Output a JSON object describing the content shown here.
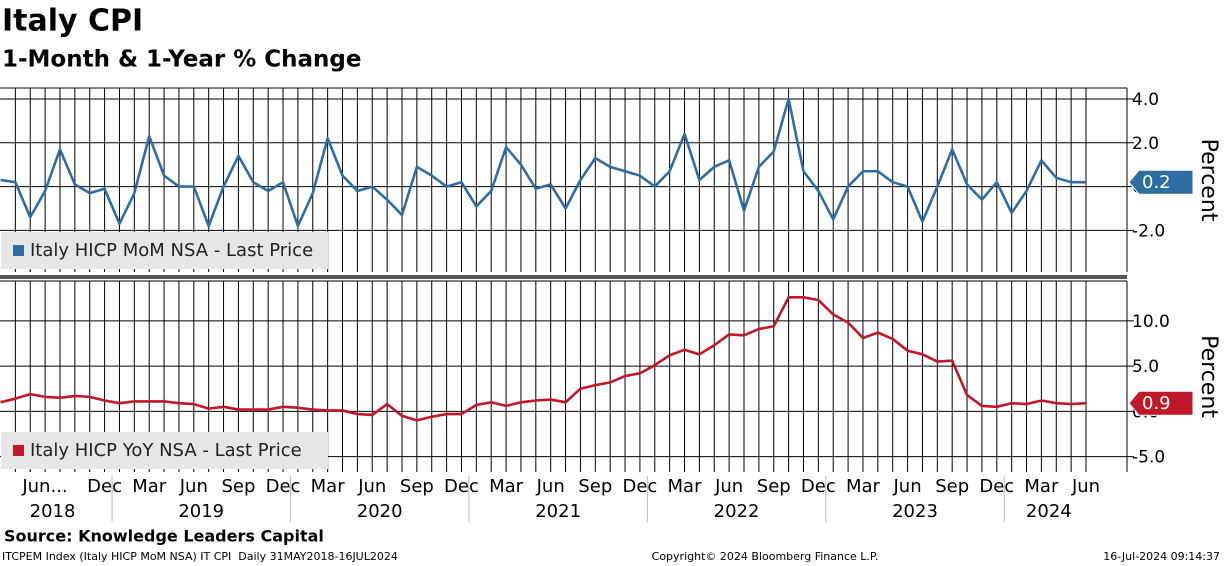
{
  "title": "Italy CPI",
  "subtitle": "1-Month & 1-Year % Change",
  "source": "Source: Knowledge Leaders Capital",
  "footer_left": "ITCPEM Index (Italy HICP MoM NSA) IT CPI  Daily 31MAY2018-16JUL2024",
  "footer_center": "Copyright© 2024 Bloomberg Finance L.P.",
  "footer_right": "16-Jul-2024 09:14:37",
  "chart_data": [
    {
      "type": "line",
      "ylabel": "Percent",
      "legend": "lower left",
      "grid": true,
      "ylim": [
        -3.9,
        4.5
      ],
      "yticks": [
        {
          "value": 4,
          "label": "4.0"
        },
        {
          "value": 2,
          "label": "2.0"
        },
        {
          "value": 0,
          "label": "0.0"
        },
        {
          "value": -2,
          "label": "-2.0"
        }
      ],
      "series": [
        {
          "name": "Italy HICP MoM NSA - Last Price",
          "color": "#2e6da4",
          "values": [
            0.3,
            0.2,
            -1.4,
            -0.2,
            1.7,
            0.1,
            -0.3,
            -0.1,
            -1.7,
            -0.3,
            2.3,
            0.5,
            0.0,
            0.0,
            -1.8,
            0.0,
            1.4,
            0.2,
            -0.2,
            0.2,
            -1.8,
            -0.3,
            2.2,
            0.5,
            -0.2,
            0.0,
            -0.6,
            -1.3,
            0.9,
            0.5,
            0.0,
            0.2,
            -0.9,
            -0.2,
            1.8,
            1.0,
            -0.1,
            0.1,
            -1.0,
            0.3,
            1.3,
            0.9,
            0.7,
            0.5,
            0.0,
            0.7,
            2.4,
            0.3,
            0.9,
            1.2,
            -1.1,
            0.9,
            1.6,
            4.0,
            0.7,
            -0.2,
            -1.5,
            0.0,
            0.7,
            0.7,
            0.2,
            0.0,
            -1.6,
            0.0,
            1.7,
            0.1,
            -0.6,
            0.2,
            -1.2,
            -0.2,
            1.2,
            0.4,
            0.2,
            0.2
          ]
        }
      ]
    },
    {
      "type": "line",
      "ylabel": "Percent",
      "legend": "lower left",
      "grid": true,
      "ylim": [
        -6.7,
        14.4
      ],
      "yticks": [
        {
          "value": 10,
          "label": "10.0"
        },
        {
          "value": 5,
          "label": "5.0"
        },
        {
          "value": 0,
          "label": "0.0"
        },
        {
          "value": -5,
          "label": "-5.0"
        }
      ],
      "categories": [
        null,
        "Jun...",
        null,
        null,
        null,
        null,
        null,
        "Dec",
        null,
        null,
        "Mar",
        null,
        null,
        "Jun",
        null,
        null,
        "Sep",
        null,
        null,
        "Dec",
        null,
        null,
        "Mar",
        null,
        null,
        "Jun",
        null,
        null,
        "Sep",
        null,
        null,
        "Dec",
        null,
        null,
        "Mar",
        null,
        null,
        "Jun",
        null,
        null,
        "Sep",
        null,
        null,
        "Dec",
        null,
        null,
        "Mar",
        null,
        null,
        "Jun",
        null,
        null,
        "Sep",
        null,
        null,
        "Dec",
        null,
        null,
        "Mar",
        null,
        null,
        "Jun",
        null,
        null,
        "Sep",
        null,
        null,
        "Dec",
        null,
        null,
        "Mar",
        null,
        null,
        "Jun"
      ],
      "years": [
        "2018",
        "2019",
        "2020",
        "2021",
        "2022",
        "2023",
        "2024"
      ],
      "series": [
        {
          "name": "Italy HICP YoY NSA - Last Price",
          "color": "#c0172a",
          "values": [
            1.0,
            1.4,
            1.9,
            1.6,
            1.5,
            1.7,
            1.6,
            1.2,
            0.9,
            1.1,
            1.1,
            1.1,
            0.9,
            0.8,
            0.3,
            0.5,
            0.2,
            0.2,
            0.2,
            0.5,
            0.4,
            0.2,
            0.1,
            0.1,
            -0.3,
            -0.4,
            0.8,
            -0.5,
            -1.0,
            -0.6,
            -0.3,
            -0.3,
            0.7,
            1.0,
            0.6,
            1.0,
            1.2,
            1.3,
            1.0,
            2.5,
            2.9,
            3.2,
            3.9,
            4.2,
            5.1,
            6.2,
            6.8,
            6.3,
            7.3,
            8.5,
            8.4,
            9.1,
            9.4,
            12.6,
            12.6,
            12.3,
            10.7,
            9.8,
            8.1,
            8.7,
            8.0,
            6.7,
            6.3,
            5.5,
            5.6,
            1.8,
            0.6,
            0.5,
            0.9,
            0.8,
            1.2,
            0.9,
            0.8,
            0.9
          ]
        }
      ]
    }
  ]
}
